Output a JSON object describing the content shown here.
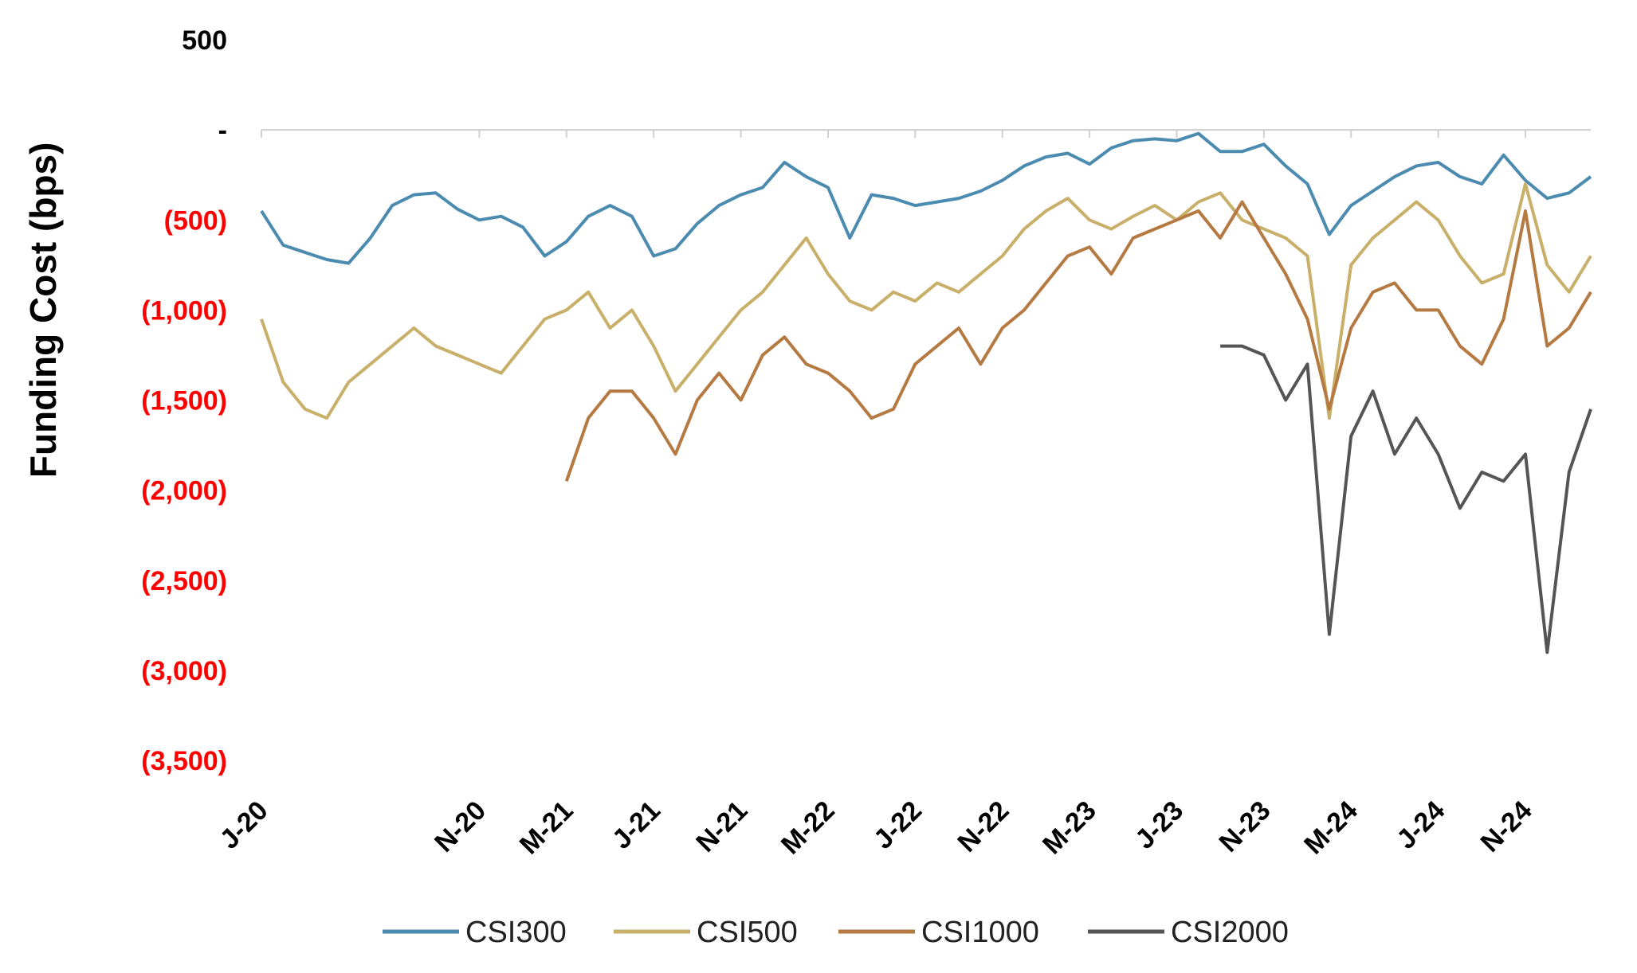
{
  "chart_data": {
    "type": "line",
    "title": "",
    "xlabel": "",
    "ylabel": "Funding Cost (bps)",
    "ylim": [
      -3500,
      500
    ],
    "y_ticks": [
      {
        "value": 500,
        "label": "500",
        "color": "#000000"
      },
      {
        "value": 0,
        "label": "-",
        "color": "#000000"
      },
      {
        "value": -500,
        "label": "(500)",
        "color": "#ff0000"
      },
      {
        "value": -1000,
        "label": "(1,000)",
        "color": "#ff0000"
      },
      {
        "value": -1500,
        "label": "(1,500)",
        "color": "#ff0000"
      },
      {
        "value": -2000,
        "label": "(2,000)",
        "color": "#ff0000"
      },
      {
        "value": -2500,
        "label": "(2,500)",
        "color": "#ff0000"
      },
      {
        "value": -3000,
        "label": "(3,000)",
        "color": "#ff0000"
      },
      {
        "value": -3500,
        "label": "(3,500)",
        "color": "#ff0000"
      }
    ],
    "x_ticks": [
      {
        "date": "2020-01",
        "label": "J-20"
      },
      {
        "date": "2020-11",
        "label": "N-20"
      },
      {
        "date": "2021-03",
        "label": "M-21"
      },
      {
        "date": "2021-07",
        "label": "J-21"
      },
      {
        "date": "2021-11",
        "label": "N-21"
      },
      {
        "date": "2022-03",
        "label": "M-22"
      },
      {
        "date": "2022-07",
        "label": "J-22"
      },
      {
        "date": "2022-11",
        "label": "N-22"
      },
      {
        "date": "2023-03",
        "label": "M-23"
      },
      {
        "date": "2023-07",
        "label": "J-23"
      },
      {
        "date": "2023-11",
        "label": "N-23"
      },
      {
        "date": "2024-03",
        "label": "M-24"
      },
      {
        "date": "2024-07",
        "label": "J-24"
      },
      {
        "date": "2024-11",
        "label": "N-24"
      }
    ],
    "x_range": [
      "2020-01",
      "2025-02"
    ],
    "grid": false,
    "legend_position": "bottom",
    "series": [
      {
        "name": "CSI300",
        "color": "#4c8bb0",
        "x": [
          "2020-01",
          "2020-02",
          "2020-03",
          "2020-04",
          "2020-05",
          "2020-06",
          "2020-07",
          "2020-08",
          "2020-09",
          "2020-10",
          "2020-11",
          "2020-12",
          "2021-01",
          "2021-02",
          "2021-03",
          "2021-04",
          "2021-05",
          "2021-06",
          "2021-07",
          "2021-08",
          "2021-09",
          "2021-10",
          "2021-11",
          "2021-12",
          "2022-01",
          "2022-02",
          "2022-03",
          "2022-04",
          "2022-05",
          "2022-06",
          "2022-07",
          "2022-08",
          "2022-09",
          "2022-10",
          "2022-11",
          "2022-12",
          "2023-01",
          "2023-02",
          "2023-03",
          "2023-04",
          "2023-05",
          "2023-06",
          "2023-07",
          "2023-08",
          "2023-09",
          "2023-10",
          "2023-11",
          "2023-12",
          "2024-01",
          "2024-02",
          "2024-03",
          "2024-04",
          "2024-05",
          "2024-06",
          "2024-07",
          "2024-08",
          "2024-09",
          "2024-10",
          "2024-11",
          "2024-12",
          "2025-01",
          "2025-02"
        ],
        "values": [
          -450,
          -640,
          -680,
          -720,
          -740,
          -600,
          -420,
          -360,
          -350,
          -440,
          -500,
          -480,
          -540,
          -700,
          -620,
          -480,
          -420,
          -480,
          -700,
          -660,
          -520,
          -420,
          -360,
          -320,
          -180,
          -260,
          -320,
          -600,
          -360,
          -380,
          -420,
          -400,
          -380,
          -340,
          -280,
          -200,
          -150,
          -130,
          -190,
          -100,
          -60,
          -50,
          -60,
          -20,
          -120,
          -120,
          -80,
          -200,
          -300,
          -580,
          -420,
          -340,
          -260,
          -200,
          -180,
          -260,
          -300,
          -140,
          -280,
          -380,
          -350,
          -260
        ]
      },
      {
        "name": "CSI500",
        "color": "#c9b06a",
        "x": [
          "2020-01",
          "2020-02",
          "2020-03",
          "2020-04",
          "2020-05",
          "2020-06",
          "2020-07",
          "2020-08",
          "2020-09",
          "2020-10",
          "2020-11",
          "2020-12",
          "2021-01",
          "2021-02",
          "2021-03",
          "2021-04",
          "2021-05",
          "2021-06",
          "2021-07",
          "2021-08",
          "2021-09",
          "2021-10",
          "2021-11",
          "2021-12",
          "2022-01",
          "2022-02",
          "2022-03",
          "2022-04",
          "2022-05",
          "2022-06",
          "2022-07",
          "2022-08",
          "2022-09",
          "2022-10",
          "2022-11",
          "2022-12",
          "2023-01",
          "2023-02",
          "2023-03",
          "2023-04",
          "2023-05",
          "2023-06",
          "2023-07",
          "2023-08",
          "2023-09",
          "2023-10",
          "2023-11",
          "2023-12",
          "2024-01",
          "2024-02",
          "2024-03",
          "2024-04",
          "2024-05",
          "2024-06",
          "2024-07",
          "2024-08",
          "2024-09",
          "2024-10",
          "2024-11",
          "2024-12",
          "2025-01",
          "2025-02"
        ],
        "values": [
          -1050,
          -1400,
          -1550,
          -1600,
          -1400,
          -1300,
          -1200,
          -1100,
          -1200,
          -1250,
          -1300,
          -1350,
          -1200,
          -1050,
          -1000,
          -900,
          -1100,
          -1000,
          -1200,
          -1450,
          -1300,
          -1150,
          -1000,
          -900,
          -750,
          -600,
          -800,
          -950,
          -1000,
          -900,
          -950,
          -850,
          -900,
          -800,
          -700,
          -550,
          -450,
          -380,
          -500,
          -550,
          -480,
          -420,
          -500,
          -400,
          -350,
          -500,
          -550,
          -600,
          -700,
          -1600,
          -750,
          -600,
          -500,
          -400,
          -500,
          -700,
          -850,
          -800,
          -300,
          -750,
          -900,
          -700
        ]
      },
      {
        "name": "CSI1000",
        "color": "#b57942",
        "x": [
          "2021-03",
          "2021-04",
          "2021-05",
          "2021-06",
          "2021-07",
          "2021-08",
          "2021-09",
          "2021-10",
          "2021-11",
          "2021-12",
          "2022-01",
          "2022-02",
          "2022-03",
          "2022-04",
          "2022-05",
          "2022-06",
          "2022-07",
          "2022-08",
          "2022-09",
          "2022-10",
          "2022-11",
          "2022-12",
          "2023-01",
          "2023-02",
          "2023-03",
          "2023-04",
          "2023-05",
          "2023-06",
          "2023-07",
          "2023-08",
          "2023-09",
          "2023-10",
          "2023-11",
          "2023-12",
          "2024-01",
          "2024-02",
          "2024-03",
          "2024-04",
          "2024-05",
          "2024-06",
          "2024-07",
          "2024-08",
          "2024-09",
          "2024-10",
          "2024-11",
          "2024-12",
          "2025-01",
          "2025-02"
        ],
        "values": [
          -1950,
          -1600,
          -1450,
          -1450,
          -1600,
          -1800,
          -1500,
          -1350,
          -1500,
          -1250,
          -1150,
          -1300,
          -1350,
          -1450,
          -1600,
          -1550,
          -1300,
          -1200,
          -1100,
          -1300,
          -1100,
          -1000,
          -850,
          -700,
          -650,
          -800,
          -600,
          -550,
          -500,
          -450,
          -600,
          -400,
          -600,
          -800,
          -1050,
          -1550,
          -1100,
          -900,
          -850,
          -1000,
          -1000,
          -1200,
          -1300,
          -1050,
          -450,
          -1200,
          -1100,
          -900
        ]
      },
      {
        "name": "CSI2000",
        "color": "#555555",
        "x": [
          "2023-09",
          "2023-10",
          "2023-11",
          "2023-12",
          "2024-01",
          "2024-02",
          "2024-03",
          "2024-04",
          "2024-05",
          "2024-06",
          "2024-07",
          "2024-08",
          "2024-09",
          "2024-10",
          "2024-11",
          "2024-12",
          "2025-01",
          "2025-02"
        ],
        "values": [
          -1200,
          -1200,
          -1250,
          -1500,
          -1300,
          -2800,
          -1700,
          -1450,
          -1800,
          -1600,
          -1800,
          -2100,
          -1900,
          -1950,
          -1800,
          -2900,
          -1900,
          -1550
        ]
      }
    ]
  }
}
